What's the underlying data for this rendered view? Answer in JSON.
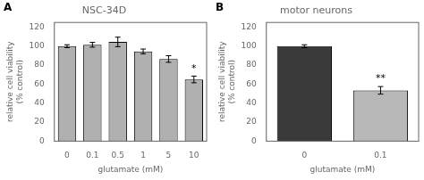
{
  "chart_data": [
    {
      "type": "bar",
      "title": "NSC-34D",
      "xlabel": "glutamate (mM)",
      "ylabel": "relative cell viability\n(% control)",
      "categories": [
        "0",
        "0.1",
        "0.5",
        "1",
        "5",
        "10"
      ],
      "values": [
        100,
        101.5,
        104.5,
        94.5,
        86.5,
        65.0
      ],
      "errors": [
        1.5,
        2.5,
        5.0,
        2.5,
        3.5,
        3.5
      ],
      "color": "#b0b0b0",
      "ylim": [
        0,
        125
      ],
      "yticks": [
        0,
        20,
        40,
        60,
        80,
        100,
        120
      ],
      "grid": false,
      "annotations": [
        {
          "text": "A"
        },
        {
          "text": "*",
          "category": "10"
        }
      ]
    },
    {
      "type": "bar",
      "title": "motor neurons",
      "xlabel": "glutamate (mM)",
      "ylabel": "relative cell viability\n(% control)",
      "categories": [
        "0",
        "0.1"
      ],
      "values": [
        100,
        53.5
      ],
      "errors": [
        1.5,
        4.0
      ],
      "colors": [
        "#3a3a3a",
        "#b8b8b8"
      ],
      "ylim": [
        0,
        125
      ],
      "yticks": [
        0,
        20,
        40,
        60,
        80,
        100,
        120
      ],
      "grid": false,
      "annotations": [
        {
          "text": "B"
        },
        {
          "text": "**",
          "category": "0.1"
        }
      ]
    }
  ]
}
